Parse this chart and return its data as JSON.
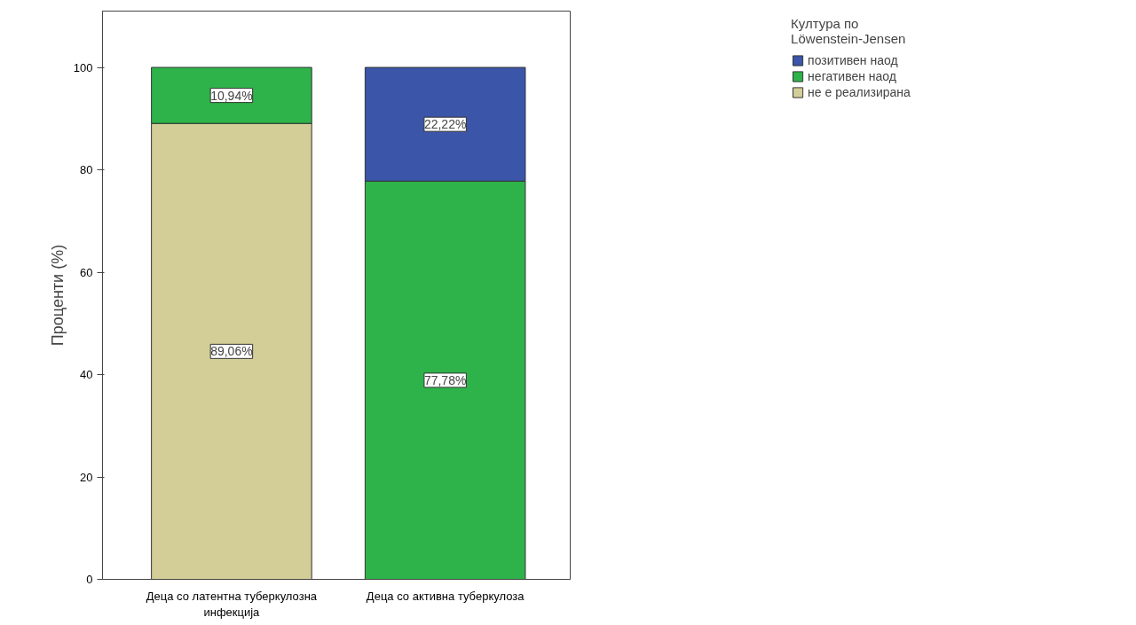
{
  "chart_data": {
    "type": "bar",
    "stacked": true,
    "ylabel": "Проценти (%)",
    "legend_title": "Култура по Löwenstein-Jensen",
    "legend": "top right",
    "grid": false,
    "categories": [
      "Деца со латентна туберкулозна инфекција",
      "Деца со активна туберкулоза"
    ],
    "ylim": [
      0,
      111
    ],
    "yticks": [
      0,
      20,
      40,
      60,
      80,
      100
    ],
    "series": [
      {
        "name": "не е реализирана",
        "color": "#d3ce97",
        "values": [
          89.06,
          0
        ],
        "value_labels": [
          "89,06%",
          null
        ]
      },
      {
        "name": "негативен наод",
        "color": "#2eb34a",
        "values": [
          10.94,
          77.78
        ],
        "value_labels": [
          "10,94%",
          "77,78%"
        ]
      },
      {
        "name": "позитивен наод",
        "color": "#3b55a8",
        "values": [
          0,
          22.22
        ],
        "value_labels": [
          null,
          "22,22%"
        ]
      }
    ]
  }
}
